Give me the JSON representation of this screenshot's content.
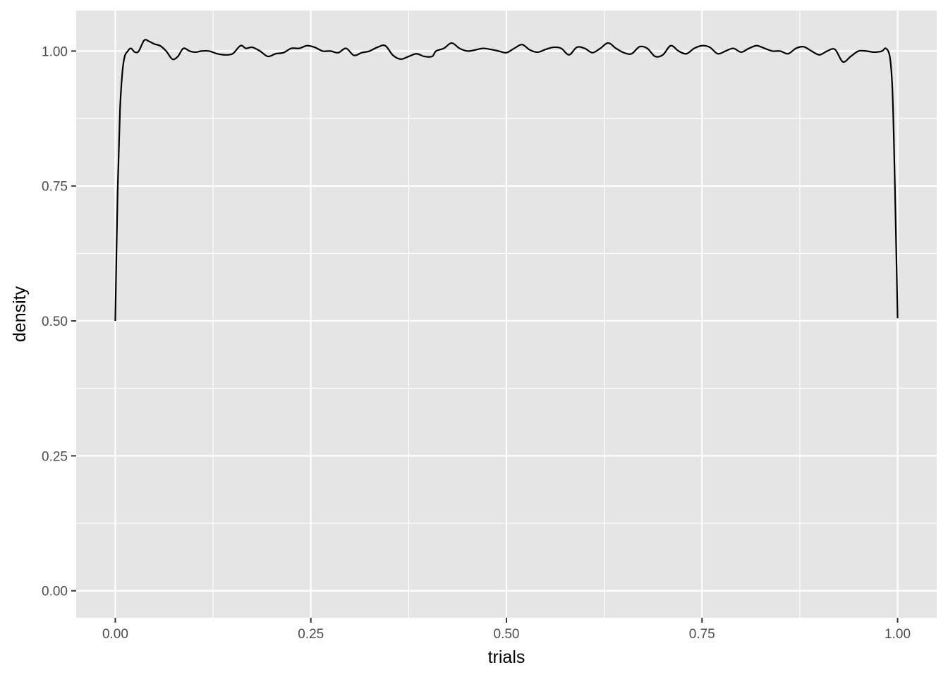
{
  "chart_data": {
    "type": "line",
    "title": "",
    "xlabel": "trials",
    "ylabel": "density",
    "xlim": [
      -0.05,
      1.05
    ],
    "ylim": [
      -0.05,
      1.075
    ],
    "x_ticks": [
      0,
      0.25,
      0.5,
      0.75,
      1
    ],
    "x_tick_labels": [
      "0.00",
      "0.25",
      "0.50",
      "0.75",
      "1.00"
    ],
    "y_ticks": [
      0,
      0.25,
      0.5,
      0.75,
      1
    ],
    "y_tick_labels": [
      "0.00",
      "0.25",
      "0.50",
      "0.75",
      "1.00"
    ],
    "grid": true,
    "legend": "none",
    "colors": {
      "panel": "#e5e5e5",
      "grid": "#ffffff",
      "line": "#000000",
      "tick": "#333333"
    },
    "series": [
      {
        "x": [
          0,
          0.003,
          0.006,
          0.009,
          0.012,
          0.016,
          0.02,
          0.025,
          0.03,
          0.037,
          0.043,
          0.05,
          0.057,
          0.065,
          0.073,
          0.08,
          0.087,
          0.095,
          0.103,
          0.11,
          0.12,
          0.13,
          0.14,
          0.15,
          0.16,
          0.167,
          0.175,
          0.185,
          0.195,
          0.205,
          0.215,
          0.225,
          0.235,
          0.245,
          0.255,
          0.265,
          0.275,
          0.285,
          0.295,
          0.305,
          0.315,
          0.325,
          0.335,
          0.345,
          0.355,
          0.365,
          0.375,
          0.385,
          0.395,
          0.405,
          0.41,
          0.42,
          0.43,
          0.44,
          0.45,
          0.46,
          0.47,
          0.48,
          0.49,
          0.5,
          0.51,
          0.52,
          0.53,
          0.54,
          0.55,
          0.56,
          0.57,
          0.58,
          0.59,
          0.6,
          0.61,
          0.62,
          0.63,
          0.64,
          0.65,
          0.66,
          0.67,
          0.68,
          0.69,
          0.7,
          0.71,
          0.72,
          0.73,
          0.74,
          0.75,
          0.76,
          0.77,
          0.78,
          0.79,
          0.8,
          0.81,
          0.82,
          0.83,
          0.84,
          0.85,
          0.86,
          0.87,
          0.88,
          0.89,
          0.9,
          0.91,
          0.92,
          0.93,
          0.94,
          0.95,
          0.96,
          0.97,
          0.98,
          0.985,
          0.99,
          0.993,
          0.995,
          0.997,
          0.999,
          1
        ],
        "y": [
          0.5,
          0.74,
          0.89,
          0.96,
          0.99,
          1.0,
          1.005,
          0.998,
          1.0,
          1.02,
          1.018,
          1.013,
          1.01,
          1.0,
          0.985,
          0.99,
          1.005,
          1.0,
          0.998,
          1.0,
          1.0,
          0.995,
          0.993,
          0.995,
          1.01,
          1.005,
          1.007,
          1.0,
          0.99,
          0.995,
          0.997,
          1.005,
          1.005,
          1.01,
          1.007,
          1.0,
          1.0,
          0.997,
          1.005,
          0.992,
          0.997,
          1.0,
          1.007,
          1.01,
          0.992,
          0.985,
          0.99,
          0.995,
          0.99,
          0.99,
          1.0,
          1.005,
          1.015,
          1.005,
          1.0,
          1.002,
          1.005,
          1.003,
          1.0,
          0.997,
          1.005,
          1.012,
          1.002,
          0.998,
          1.003,
          1.007,
          1.005,
          0.993,
          1.007,
          1.005,
          0.997,
          1.005,
          1.015,
          1.005,
          0.997,
          0.995,
          1.008,
          1.005,
          0.99,
          0.993,
          1.01,
          1.0,
          0.995,
          1.005,
          1.01,
          1.007,
          0.995,
          1.0,
          1.005,
          0.998,
          1.005,
          1.01,
          1.005,
          1.0,
          1.0,
          0.995,
          1.005,
          1.008,
          1.0,
          0.993,
          1.0,
          1.003,
          0.98,
          0.99,
          1.0,
          1.0,
          0.998,
          1.0,
          1.005,
          0.99,
          0.94,
          0.85,
          0.72,
          0.58,
          0.505
        ]
      }
    ]
  }
}
